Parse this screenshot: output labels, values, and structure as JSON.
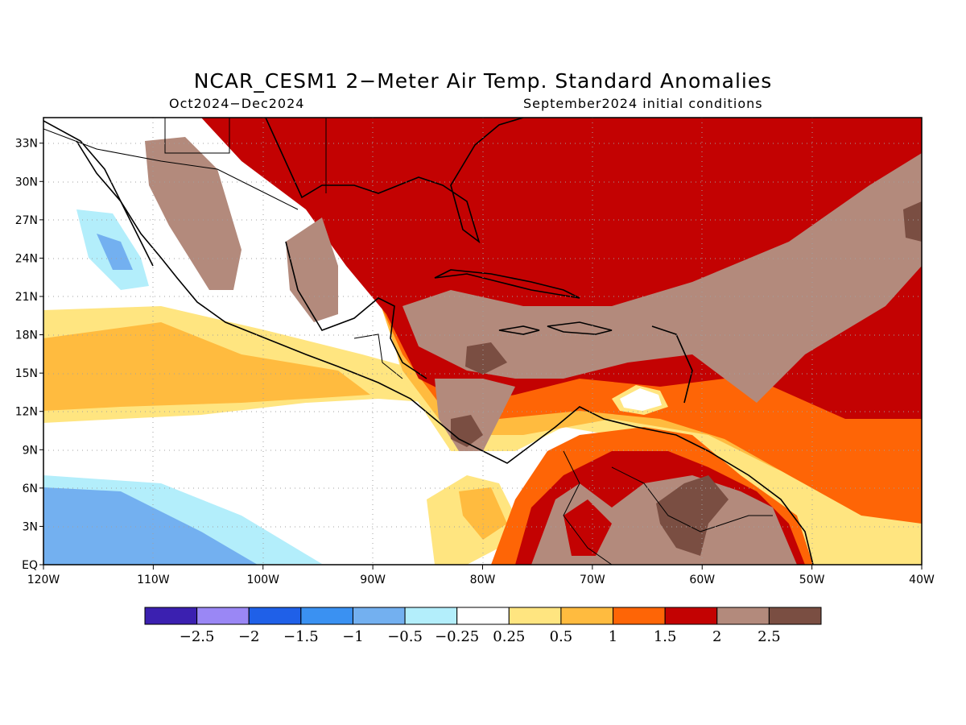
{
  "header": {
    "title": "NCAR_CESM1 2−Meter Air Temp. Standard Anomalies",
    "period": "Oct2024−Dec2024",
    "init": "September2024 initial conditions"
  },
  "map_axes": {
    "lon_range": [
      -120,
      -40
    ],
    "lat_range": [
      0,
      35
    ],
    "x_ticks": [
      "120W",
      "110W",
      "100W",
      "90W",
      "80W",
      "70W",
      "60W",
      "50W",
      "40W"
    ],
    "y_ticks": [
      "EQ",
      "3N",
      "6N",
      "9N",
      "12N",
      "15N",
      "18N",
      "21N",
      "24N",
      "27N",
      "30N",
      "33N"
    ]
  },
  "colorbar": {
    "colors": [
      "#3b20b0",
      "#9a87f5",
      "#1f60e8",
      "#3a91f2",
      "#73b0f0",
      "#b3eefb",
      "#ffffff",
      "#ffe580",
      "#ffbb3f",
      "#fe6506",
      "#c30202",
      "#b38a7c",
      "#7a4e42"
    ],
    "labels": [
      "−2.5",
      "−2",
      "−1.5",
      "−1",
      "−0.5",
      "−0.25",
      "0.25",
      "0.5",
      "1",
      "1.5",
      "2",
      "2.5"
    ]
  }
}
